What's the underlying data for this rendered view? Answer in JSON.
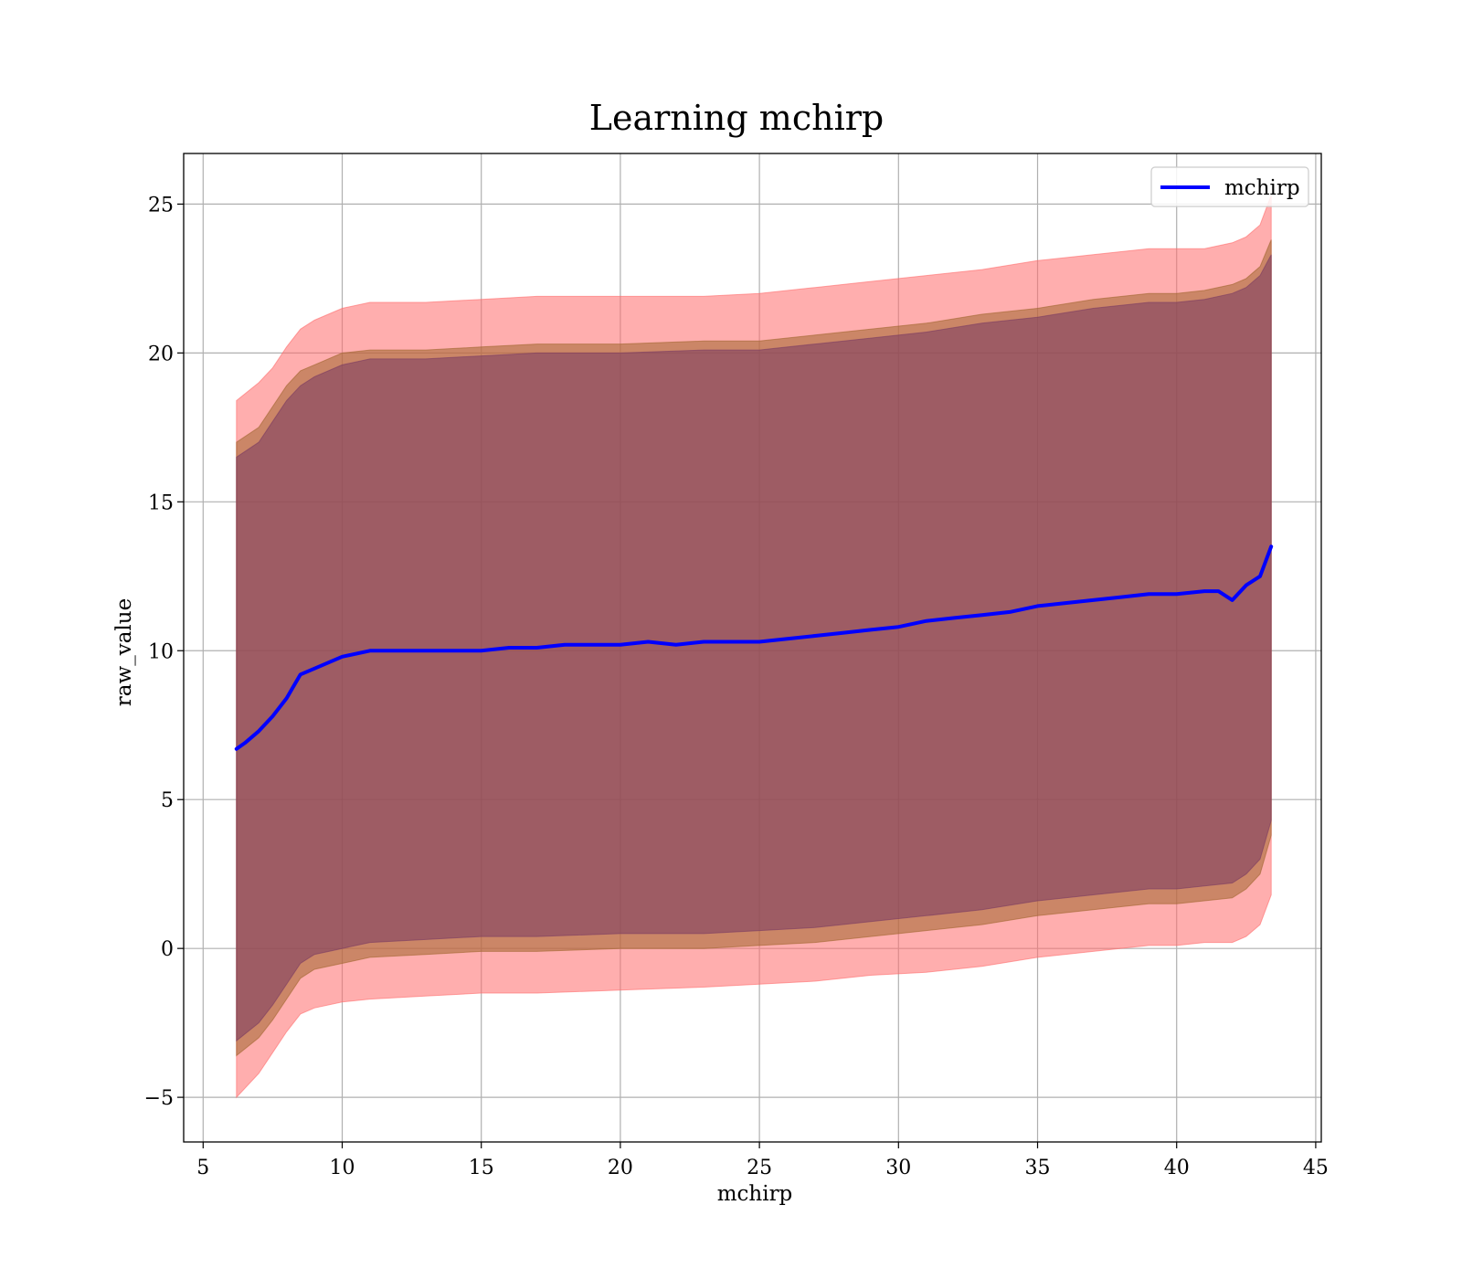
{
  "chart_data": {
    "type": "line",
    "title": "Learning mchirp",
    "xlabel": "mchirp",
    "ylabel": "raw_value",
    "xlim": [
      4.3,
      45.2
    ],
    "ylim": [
      -6.5,
      26.7
    ],
    "xticks": [
      5,
      10,
      15,
      20,
      25,
      30,
      35,
      40,
      45
    ],
    "yticks": [
      -5,
      0,
      5,
      10,
      15,
      20,
      25
    ],
    "xtick_labels": [
      "5",
      "10",
      "15",
      "20",
      "25",
      "30",
      "35",
      "40",
      "45"
    ],
    "ytick_labels": [
      "−5",
      "0",
      "5",
      "10",
      "15",
      "20",
      "25"
    ],
    "grid": true,
    "legend_position": "top-right",
    "legend": [
      "mchirp"
    ],
    "series": [
      {
        "name": "mchirp",
        "kind": "line",
        "color": "#0000ff",
        "x": [
          6.2,
          6.5,
          7.0,
          7.5,
          8.0,
          8.5,
          9.0,
          9.5,
          10.0,
          11.0,
          12.0,
          13.0,
          14.0,
          15.0,
          16.0,
          17.0,
          18.0,
          19.0,
          20.0,
          21.0,
          22.0,
          23.0,
          24.0,
          25.0,
          26.0,
          27.0,
          28.0,
          29.0,
          30.0,
          31.0,
          32.0,
          33.0,
          34.0,
          35.0,
          36.0,
          37.0,
          38.0,
          39.0,
          40.0,
          41.0,
          41.5,
          42.0,
          42.5,
          43.0,
          43.4
        ],
        "y": [
          6.7,
          6.9,
          7.3,
          7.8,
          8.4,
          9.2,
          9.4,
          9.6,
          9.8,
          10.0,
          10.0,
          10.0,
          10.0,
          10.0,
          10.1,
          10.1,
          10.2,
          10.2,
          10.2,
          10.3,
          10.2,
          10.3,
          10.3,
          10.3,
          10.4,
          10.5,
          10.6,
          10.7,
          10.8,
          11.0,
          11.1,
          11.2,
          11.3,
          11.5,
          11.6,
          11.7,
          11.8,
          11.9,
          11.9,
          12.0,
          12.0,
          11.7,
          12.2,
          12.5,
          13.5
        ]
      }
    ],
    "bands": [
      {
        "color": "#ff6b6b",
        "opacity": 0.55,
        "x": [
          6.2,
          7.0,
          7.5,
          8.0,
          8.5,
          9.0,
          10.0,
          11.0,
          13.0,
          15.0,
          17.0,
          20.0,
          23.0,
          25.0,
          27.0,
          29.0,
          31.0,
          33.0,
          35.0,
          37.0,
          39.0,
          40.0,
          41.0,
          42.0,
          42.5,
          43.0,
          43.4
        ],
        "upper": [
          18.4,
          19.0,
          19.5,
          20.2,
          20.8,
          21.1,
          21.5,
          21.7,
          21.7,
          21.8,
          21.9,
          21.9,
          21.9,
          22.0,
          22.2,
          22.4,
          22.6,
          22.8,
          23.1,
          23.3,
          23.5,
          23.5,
          23.5,
          23.7,
          23.9,
          24.3,
          25.3
        ],
        "lower": [
          -5.0,
          -4.2,
          -3.5,
          -2.8,
          -2.2,
          -2.0,
          -1.8,
          -1.7,
          -1.6,
          -1.5,
          -1.5,
          -1.4,
          -1.3,
          -1.2,
          -1.1,
          -0.9,
          -0.8,
          -0.6,
          -0.3,
          -0.1,
          0.1,
          0.1,
          0.2,
          0.2,
          0.4,
          0.8,
          1.8
        ]
      },
      {
        "color": "#a0662e",
        "opacity": 0.55,
        "x": [
          6.2,
          7.0,
          7.5,
          8.0,
          8.5,
          9.0,
          10.0,
          11.0,
          13.0,
          15.0,
          17.0,
          20.0,
          23.0,
          25.0,
          27.0,
          29.0,
          31.0,
          33.0,
          35.0,
          37.0,
          39.0,
          40.0,
          41.0,
          42.0,
          42.5,
          43.0,
          43.4
        ],
        "upper": [
          17.0,
          17.5,
          18.2,
          18.9,
          19.4,
          19.6,
          20.0,
          20.1,
          20.1,
          20.2,
          20.3,
          20.3,
          20.4,
          20.4,
          20.6,
          20.8,
          21.0,
          21.3,
          21.5,
          21.8,
          22.0,
          22.0,
          22.1,
          22.3,
          22.5,
          22.9,
          23.8
        ],
        "lower": [
          -3.6,
          -3.0,
          -2.4,
          -1.7,
          -1.0,
          -0.7,
          -0.5,
          -0.3,
          -0.2,
          -0.1,
          -0.1,
          0.0,
          0.0,
          0.1,
          0.2,
          0.4,
          0.6,
          0.8,
          1.1,
          1.3,
          1.5,
          1.5,
          1.6,
          1.7,
          2.0,
          2.5,
          3.8
        ]
      },
      {
        "color": "#7a3b62",
        "opacity": 0.55,
        "x": [
          6.2,
          7.0,
          7.5,
          8.0,
          8.5,
          9.0,
          10.0,
          11.0,
          13.0,
          15.0,
          17.0,
          20.0,
          23.0,
          25.0,
          27.0,
          29.0,
          31.0,
          33.0,
          35.0,
          37.0,
          39.0,
          40.0,
          41.0,
          42.0,
          42.5,
          43.0,
          43.4
        ],
        "upper": [
          16.5,
          17.0,
          17.7,
          18.4,
          18.9,
          19.2,
          19.6,
          19.8,
          19.8,
          19.9,
          20.0,
          20.0,
          20.1,
          20.1,
          20.3,
          20.5,
          20.7,
          21.0,
          21.2,
          21.5,
          21.7,
          21.7,
          21.8,
          22.0,
          22.2,
          22.6,
          23.3
        ],
        "lower": [
          -3.1,
          -2.5,
          -1.9,
          -1.2,
          -0.5,
          -0.2,
          0.0,
          0.2,
          0.3,
          0.4,
          0.4,
          0.5,
          0.5,
          0.6,
          0.7,
          0.9,
          1.1,
          1.3,
          1.6,
          1.8,
          2.0,
          2.0,
          2.1,
          2.2,
          2.5,
          3.0,
          4.3
        ]
      }
    ]
  }
}
